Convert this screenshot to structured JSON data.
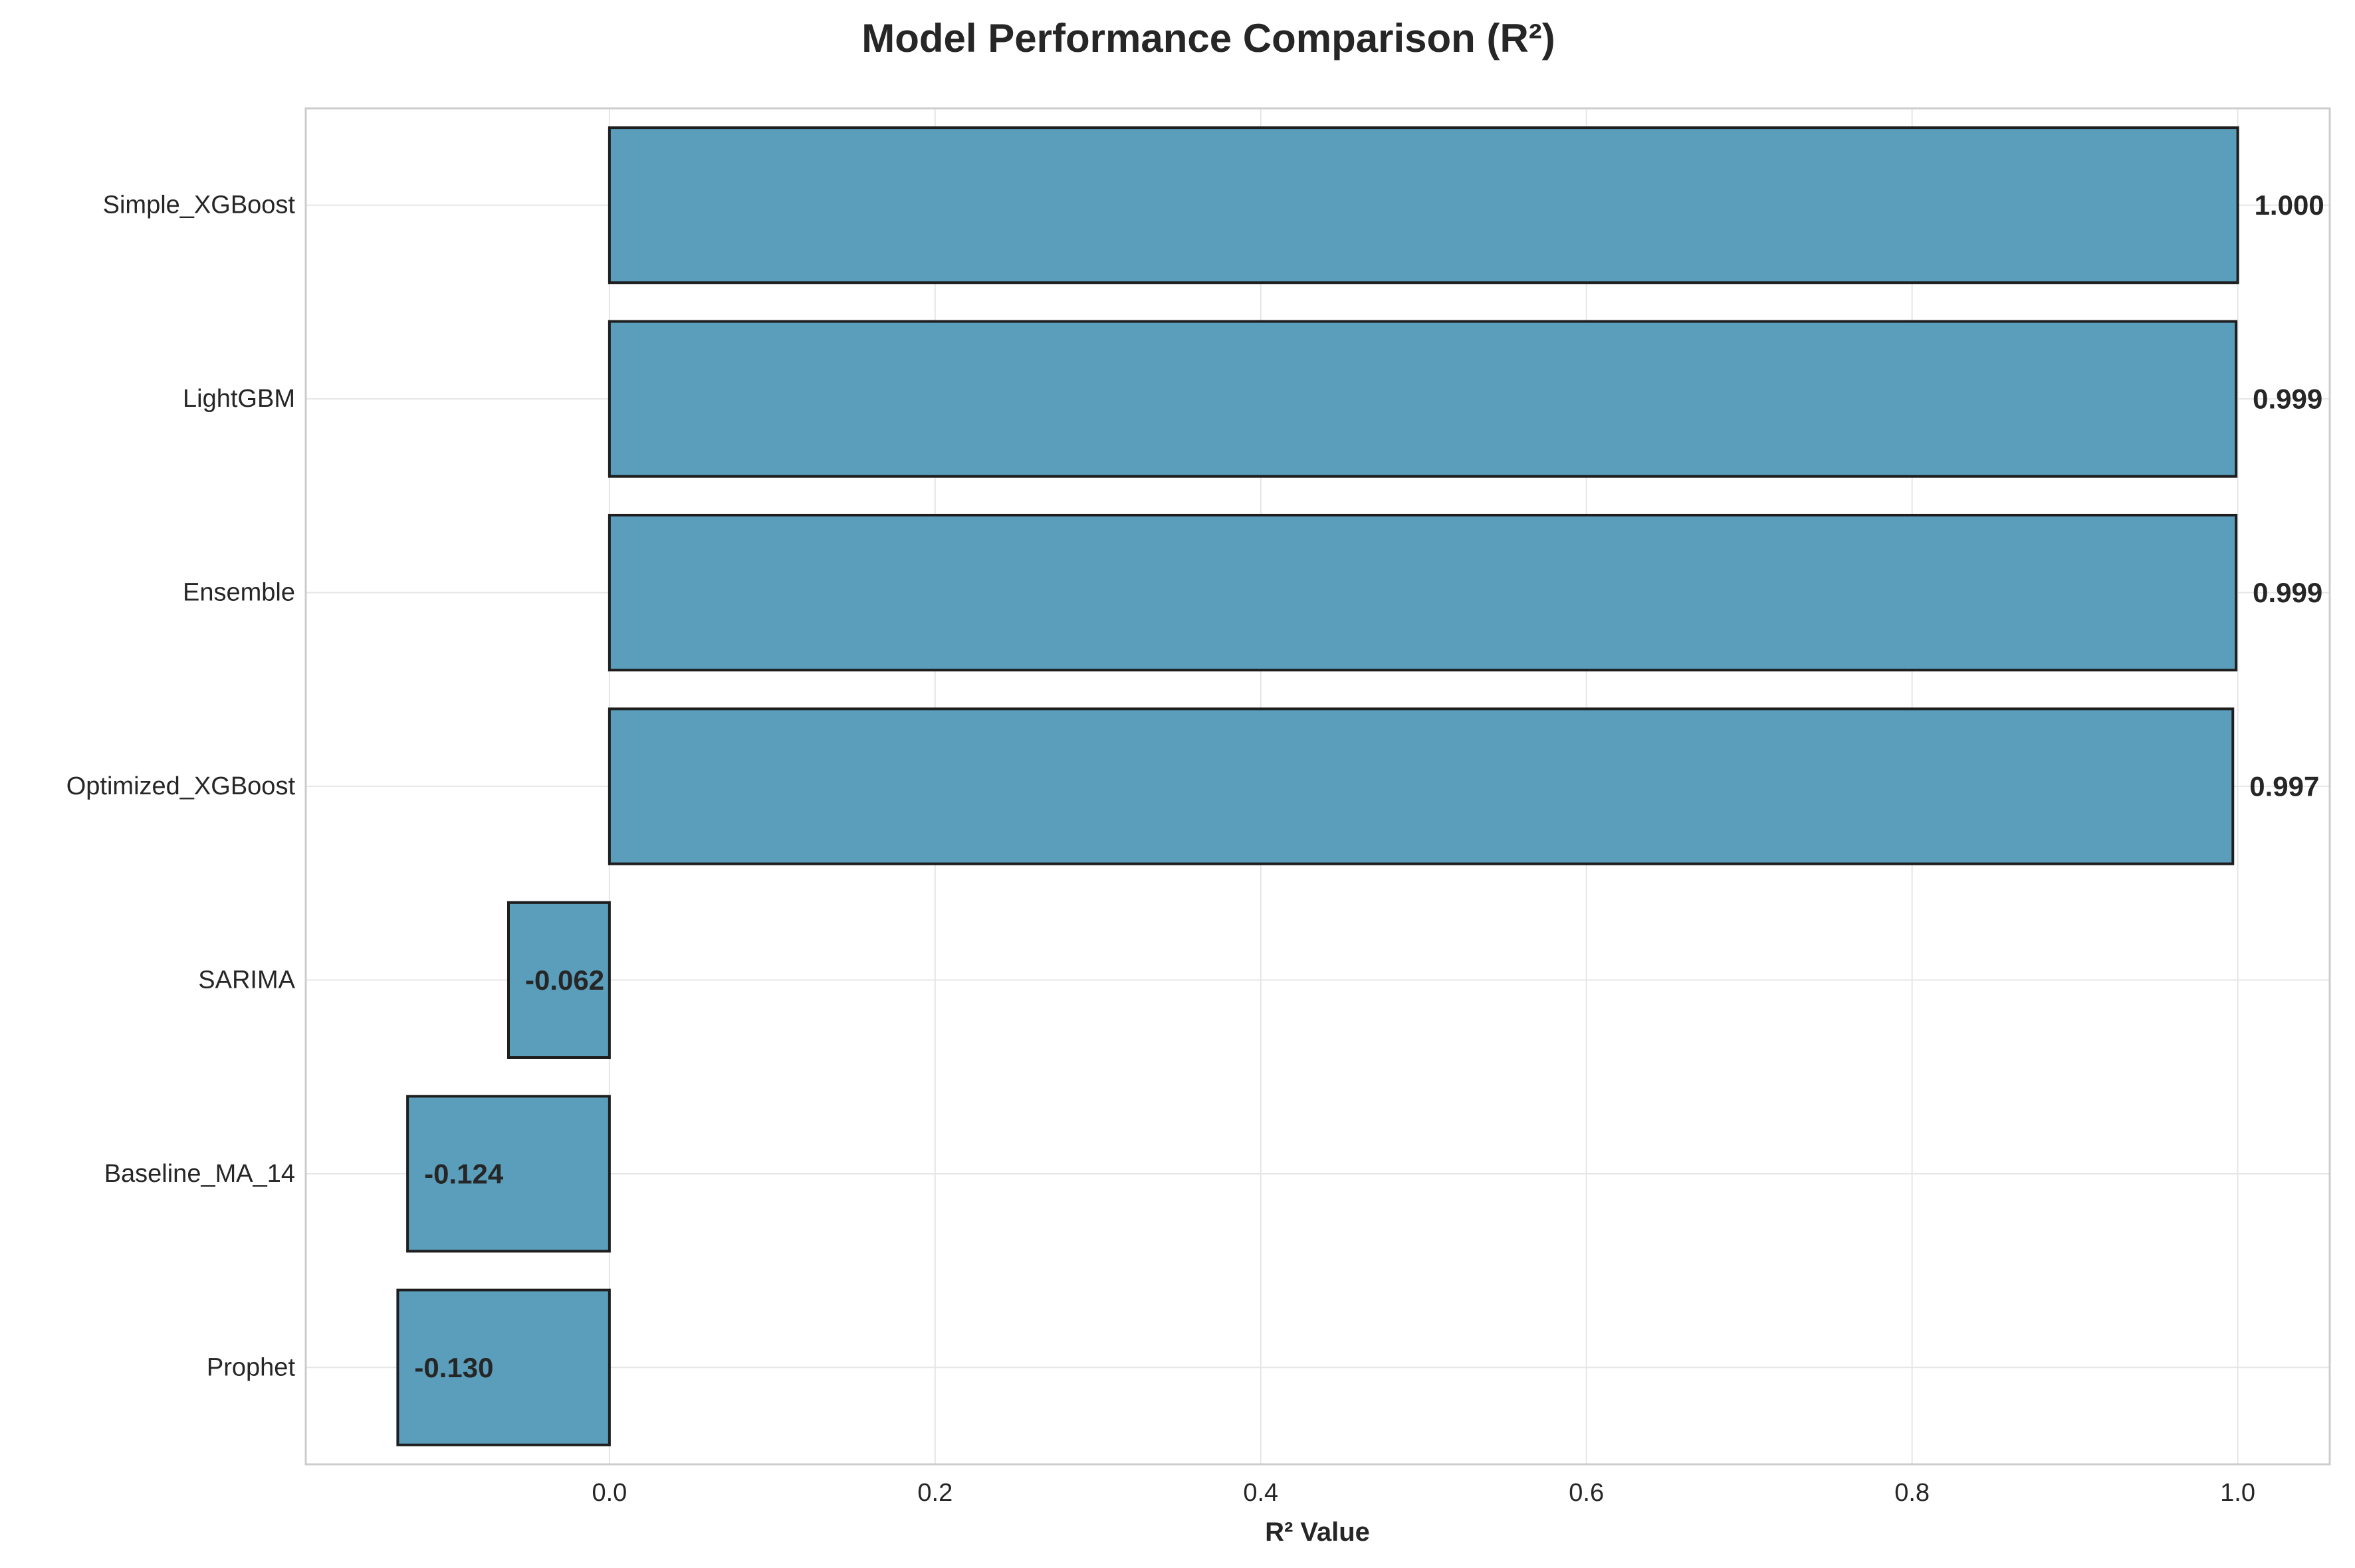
{
  "chart_data": {
    "type": "bar",
    "orientation": "horizontal",
    "title": "Model Performance Comparison (R²)",
    "xlabel": "R² Value",
    "ylabel": "",
    "categories": [
      "Simple_XGBoost",
      "LightGBM",
      "Ensemble",
      "Optimized_XGBoost",
      "SARIMA",
      "Baseline_MA_14",
      "Prophet"
    ],
    "values": [
      1.0,
      0.999,
      0.999,
      0.997,
      -0.062,
      -0.124,
      -0.13
    ],
    "value_labels": [
      "1.000",
      "0.999",
      "0.999",
      "0.997",
      "-0.062",
      "-0.124",
      "-0.130"
    ],
    "xticks": [
      0.0,
      0.2,
      0.4,
      0.6,
      0.8,
      1.0
    ],
    "xtick_labels": [
      "0.0",
      "0.2",
      "0.4",
      "0.6",
      "0.8",
      "1.0"
    ],
    "xlim": [
      -0.1865,
      1.0565
    ],
    "grid": true,
    "legend": "none",
    "colors": {
      "bar_fill": "#5a9ebc",
      "bar_edge": "#1e1e1e",
      "grid": "#e6e6e6",
      "frame": "#cccccc",
      "text": "#262626"
    }
  }
}
